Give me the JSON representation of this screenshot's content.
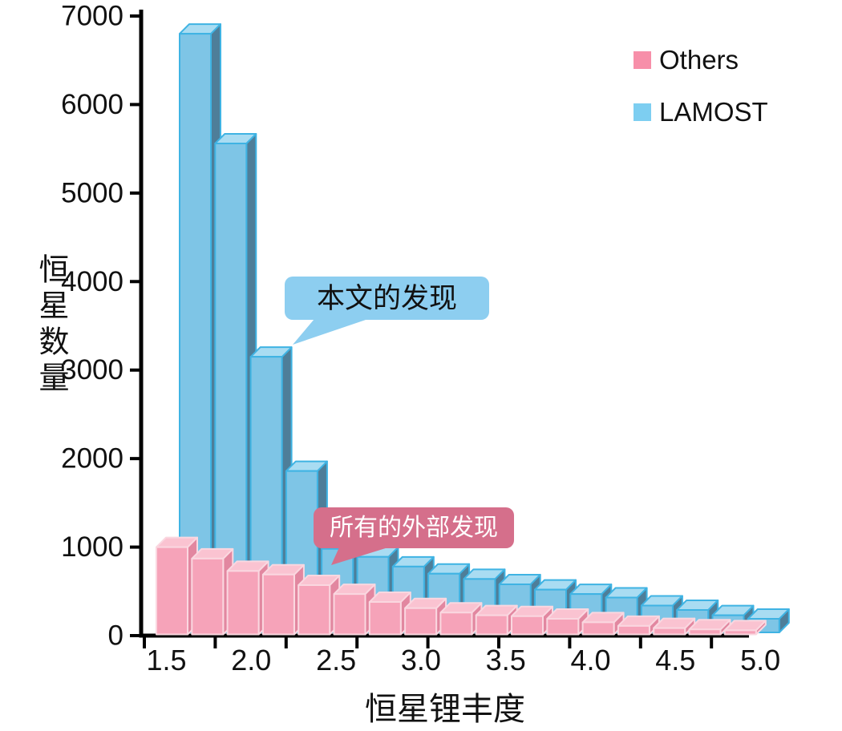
{
  "figure": {
    "background": "#FFFFFF"
  },
  "legend": {
    "items": [
      {
        "label": "Others",
        "color": "#F78FA9"
      },
      {
        "label": "LAMOST",
        "color": "#7DCEF1"
      }
    ]
  },
  "annotations": {
    "lamost_callout": {
      "text": "本文的发现",
      "bg": "#8DCEF0",
      "text_color": "#111111"
    },
    "others_callout": {
      "text": "所有的外部发现",
      "bg": "#D56F8B",
      "text_color": "#FFFFFF"
    }
  },
  "axes": {
    "x_title": "恒星锂丰度",
    "y_title": "恒星数量",
    "x_tick_labels": [
      "1.5",
      "2.0",
      "2.5",
      "3.0",
      "3.5",
      "4.0",
      "4.5",
      "5.0"
    ],
    "y_tick_labels": [
      "0",
      "1000",
      "2000",
      "3000",
      "4000",
      "5000",
      "6000",
      "7000"
    ]
  },
  "chart_data": {
    "type": "bar",
    "subtype": "3d-histogram",
    "title": "",
    "xlabel": "恒星锂丰度",
    "ylabel": "恒星数量",
    "bin_start": 1.5,
    "bin_width": 0.2,
    "categories": [
      "1.5",
      "1.7",
      "1.9",
      "2.1",
      "2.3",
      "2.5",
      "2.7",
      "2.9",
      "3.1",
      "3.3",
      "3.5",
      "3.7",
      "3.9",
      "4.1",
      "4.3",
      "4.5",
      "4.7"
    ],
    "series": [
      {
        "name": "Others",
        "values": [
          1000,
          870,
          730,
          690,
          570,
          470,
          380,
          310,
          260,
          230,
          220,
          190,
          150,
          110,
          85,
          70,
          60
        ],
        "faces": {
          "front": "#F6A3B9",
          "top": "#FAC3D1",
          "side": "#E287A0",
          "outline": "#FAD7E0"
        }
      },
      {
        "name": "LAMOST",
        "values": [
          6800,
          5560,
          3150,
          1860,
          980,
          890,
          780,
          700,
          640,
          580,
          520,
          470,
          430,
          340,
          290,
          230,
          190
        ],
        "faces": {
          "front": "#7EC5E6",
          "top": "#A9DCF2",
          "side": "#4E7E99",
          "outline": "#3FB3E3"
        }
      }
    ],
    "ylim": [
      0,
      7000
    ],
    "y_ticks": [
      0,
      1000,
      2000,
      3000,
      4000,
      5000,
      6000,
      7000
    ],
    "x_tick_labels": [
      "1.5",
      "2.0",
      "2.5",
      "3.0",
      "3.5",
      "4.0",
      "4.5",
      "5.0"
    ],
    "grid": false,
    "legend_position": "top-right",
    "annotations": [
      {
        "text": "本文的发现",
        "target_series": "LAMOST"
      },
      {
        "text": "所有的外部发现",
        "target_series": "Others"
      }
    ]
  }
}
